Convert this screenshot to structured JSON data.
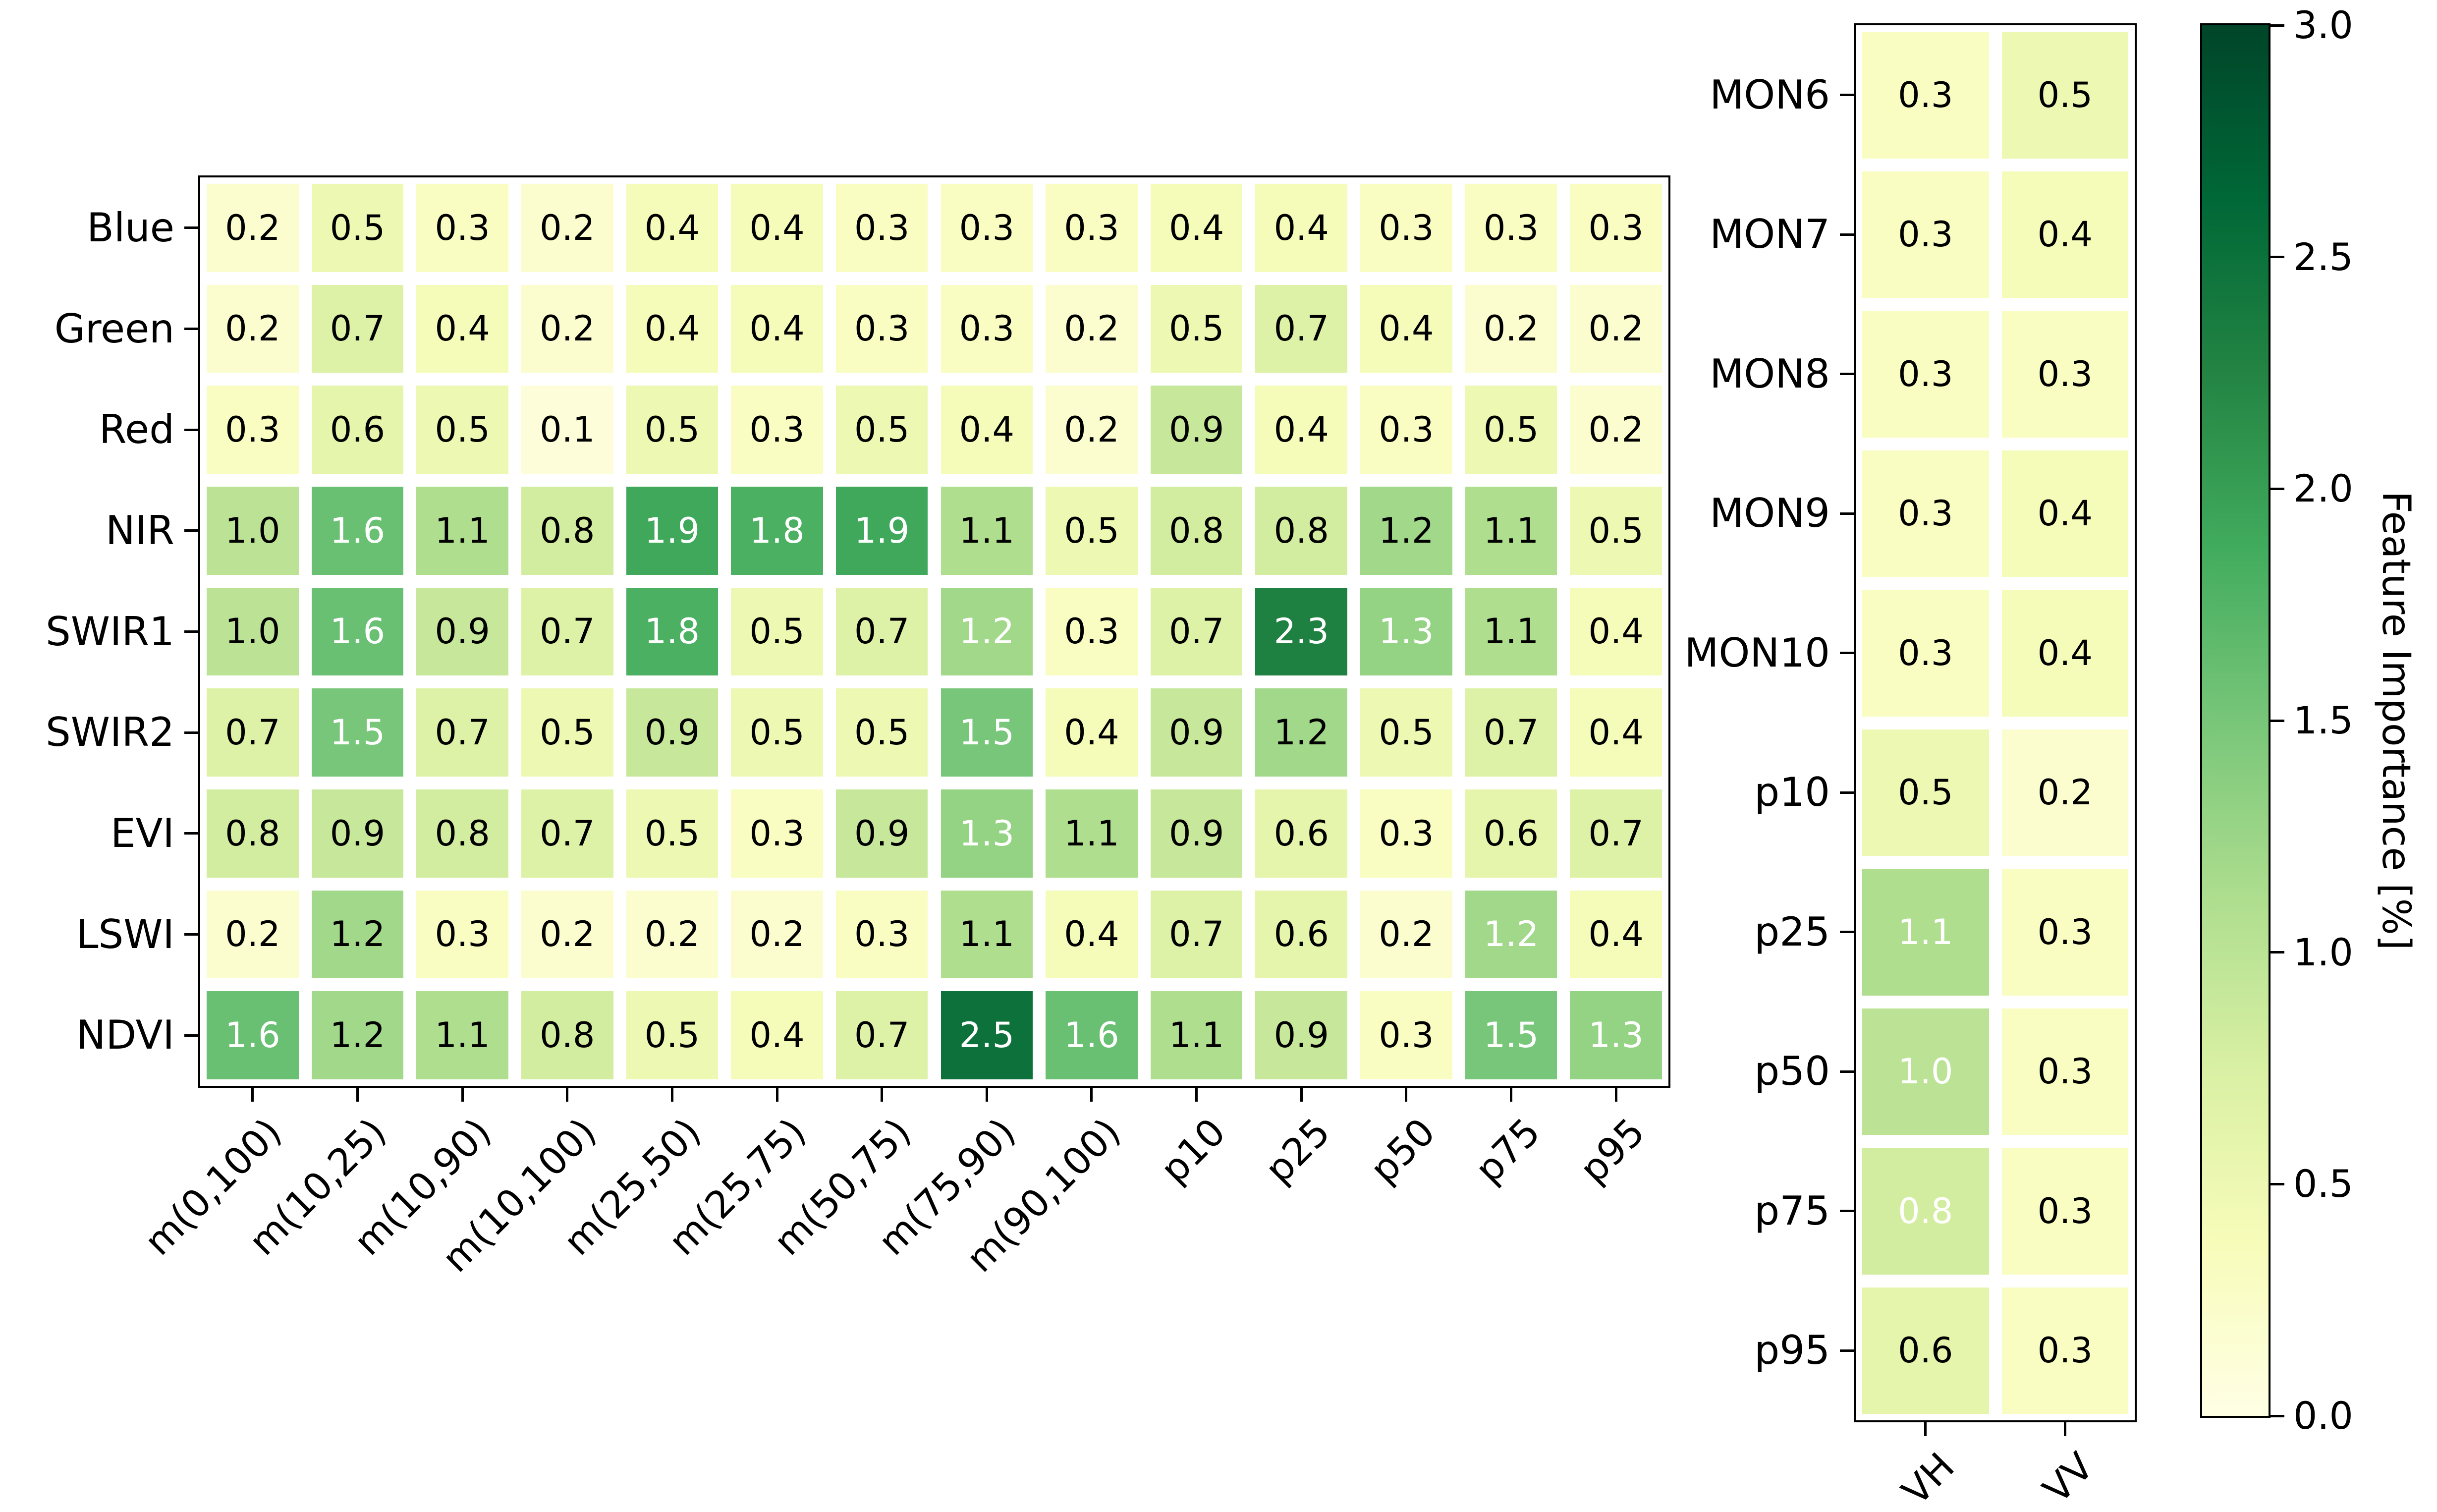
{
  "figure": {
    "background": "#ffffff"
  },
  "colormap": {
    "name": "YlGn",
    "vmin": 0.0,
    "vmax": 3.0,
    "stops": [
      "#ffffe5",
      "#f7fcb9",
      "#d9f0a3",
      "#addd8e",
      "#78c679",
      "#41ab5d",
      "#238443",
      "#006837",
      "#004529"
    ]
  },
  "chart_data": [
    {
      "type": "heatmap",
      "title": "",
      "rows": [
        "Blue",
        "Green",
        "Red",
        "NIR",
        "SWIR1",
        "SWIR2",
        "EVI",
        "LSWI",
        "NDVI"
      ],
      "columns": [
        "m(0,100)",
        "m(10,25)",
        "m(10,90)",
        "m(10,100)",
        "m(25,50)",
        "m(25,75)",
        "m(50,75)",
        "m(75,90)",
        "m(90,100)",
        "p10",
        "p25",
        "p50",
        "p75",
        "p95"
      ],
      "values": [
        [
          0.2,
          0.5,
          0.3,
          0.2,
          0.4,
          0.4,
          0.3,
          0.3,
          0.3,
          0.4,
          0.4,
          0.3,
          0.3,
          0.3
        ],
        [
          0.2,
          0.7,
          0.4,
          0.2,
          0.4,
          0.4,
          0.3,
          0.3,
          0.2,
          0.5,
          0.7,
          0.4,
          0.2,
          0.2
        ],
        [
          0.3,
          0.6,
          0.5,
          0.1,
          0.5,
          0.3,
          0.5,
          0.4,
          0.2,
          0.9,
          0.4,
          0.3,
          0.5,
          0.2
        ],
        [
          1.0,
          1.6,
          1.1,
          0.8,
          1.9,
          1.8,
          1.9,
          1.1,
          0.5,
          0.8,
          0.8,
          1.2,
          1.1,
          0.5
        ],
        [
          1.0,
          1.6,
          0.9,
          0.7,
          1.8,
          0.5,
          0.7,
          1.2,
          0.3,
          0.7,
          2.3,
          1.3,
          1.1,
          0.4
        ],
        [
          0.7,
          1.5,
          0.7,
          0.5,
          0.9,
          0.5,
          0.5,
          1.5,
          0.4,
          0.9,
          1.2,
          0.5,
          0.7,
          0.4
        ],
        [
          0.8,
          0.9,
          0.8,
          0.7,
          0.5,
          0.3,
          0.9,
          1.3,
          1.1,
          0.9,
          0.6,
          0.3,
          0.6,
          0.7
        ],
        [
          0.2,
          1.2,
          0.3,
          0.2,
          0.2,
          0.2,
          0.3,
          1.1,
          0.4,
          0.7,
          0.6,
          0.2,
          1.2,
          0.4
        ],
        [
          1.6,
          1.2,
          1.1,
          0.8,
          0.5,
          0.4,
          0.7,
          2.5,
          1.6,
          1.1,
          0.9,
          0.3,
          1.5,
          1.3
        ]
      ],
      "white_text_cells": [
        [
          3,
          1
        ],
        [
          3,
          4
        ],
        [
          3,
          5
        ],
        [
          3,
          6
        ],
        [
          4,
          1
        ],
        [
          4,
          4
        ],
        [
          4,
          7
        ],
        [
          4,
          10
        ],
        [
          4,
          11
        ],
        [
          5,
          1
        ],
        [
          5,
          7
        ],
        [
          6,
          7
        ],
        [
          7,
          12
        ],
        [
          8,
          0
        ],
        [
          8,
          7
        ],
        [
          8,
          8
        ],
        [
          8,
          12
        ],
        [
          8,
          13
        ]
      ],
      "value_format_decimals": 1,
      "grid": false,
      "legend_position": "colorbar-right"
    },
    {
      "type": "heatmap",
      "title": "",
      "rows": [
        "MON6",
        "MON7",
        "MON8",
        "MON9",
        "MON10",
        "p10",
        "p25",
        "p50",
        "p75",
        "p95"
      ],
      "columns": [
        "VH",
        "VV"
      ],
      "values": [
        [
          0.3,
          0.5
        ],
        [
          0.3,
          0.4
        ],
        [
          0.3,
          0.3
        ],
        [
          0.3,
          0.4
        ],
        [
          0.3,
          0.4
        ],
        [
          0.5,
          0.2
        ],
        [
          1.1,
          0.3
        ],
        [
          1.0,
          0.3
        ],
        [
          0.8,
          0.3
        ],
        [
          0.6,
          0.3
        ]
      ],
      "white_text_cells": [
        [
          6,
          0
        ],
        [
          7,
          0
        ],
        [
          8,
          0
        ]
      ],
      "value_format_decimals": 1,
      "grid": false,
      "legend_position": "colorbar-right"
    }
  ],
  "colorbar": {
    "label": "Feature Importance [%]",
    "ticks": [
      "3.0",
      "2.5",
      "2.0",
      "1.5",
      "1.0",
      "0.5",
      "0.0"
    ],
    "range": [
      0.0,
      3.0
    ]
  }
}
